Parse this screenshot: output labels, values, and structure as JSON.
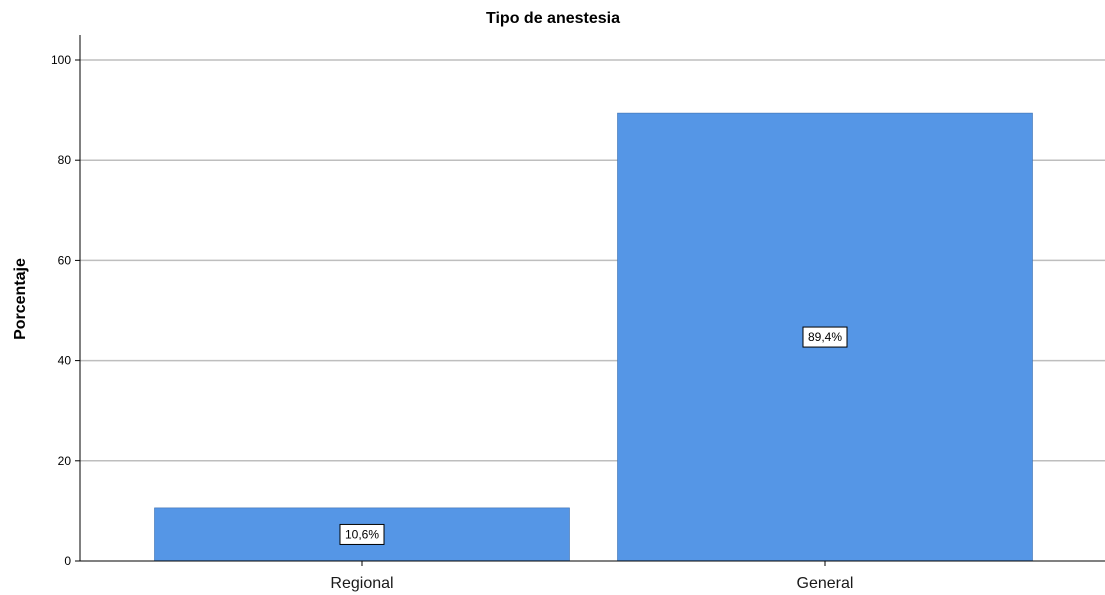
{
  "chart_data": {
    "type": "bar",
    "title": "Tipo de anestesia",
    "xlabel": "",
    "ylabel": "Porcentaje",
    "categories": [
      "Regional",
      "General"
    ],
    "values": [
      10.6,
      89.4
    ],
    "data_labels": [
      "10,6%",
      "89,4%"
    ],
    "ylim": [
      0,
      100
    ],
    "yticks": [
      0,
      20,
      40,
      60,
      80,
      100
    ],
    "ytick_labels": [
      "0",
      "20",
      "40",
      "60",
      "80",
      "100"
    ],
    "grid": true,
    "bar_color": "#5596e6",
    "grid_color": "#bebebe"
  }
}
